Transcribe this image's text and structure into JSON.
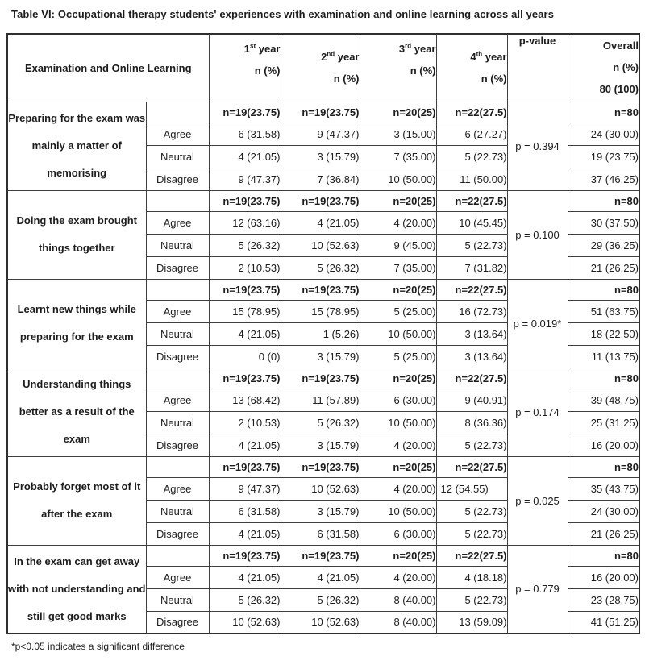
{
  "title": "Table VI: Occupational therapy students' experiences with examination and online learning across all years",
  "footnote": "*p<0.05 indicates a significant difference",
  "table": {
    "header": {
      "main": "Examination and Online Learning",
      "years": [
        {
          "num": "1",
          "suffix": "st",
          "word": "year",
          "sub": "n (%)"
        },
        {
          "num": "2",
          "suffix": "nd",
          "word": "year",
          "sub": "n (%)"
        },
        {
          "num": "3",
          "suffix": "rd",
          "word": "year",
          "sub": "n (%)"
        },
        {
          "num": "4",
          "suffix": "th",
          "word": "year",
          "sub": "n (%)"
        }
      ],
      "p_label": "p-value",
      "overall_lines": [
        "Overall",
        "n (%)",
        "80 (100)"
      ]
    },
    "blocks": [
      {
        "statement": "Preparing for the exam was mainly a matter of memorising",
        "p_value": "p = 0.394",
        "n_row": [
          "n=19(23.75)",
          "n=19(23.75)",
          "n=20(25)",
          "n=22(27.5)",
          "n=80"
        ],
        "rows": [
          {
            "label": "Agree",
            "values": [
              "6 (31.58)",
              "9 (47.37)",
              "3 (15.00)",
              "6 (27.27)",
              "24 (30.00)"
            ]
          },
          {
            "label": "Neutral",
            "values": [
              "4 (21.05)",
              "3 (15.79)",
              "7 (35.00)",
              "5 (22.73)",
              "19 (23.75)"
            ]
          },
          {
            "label": "Disagree",
            "values": [
              "9 (47.37)",
              "7 (36.84)",
              "10 (50.00)",
              "11 (50.00)",
              "37 (46.25)"
            ]
          }
        ]
      },
      {
        "statement": "Doing the exam brought things together",
        "p_value": "p = 0.100",
        "n_row": [
          "n=19(23.75)",
          "n=19(23.75)",
          "n=20(25)",
          "n=22(27.5)",
          "n=80"
        ],
        "rows": [
          {
            "label": "Agree",
            "values": [
              "12 (63.16)",
              "4 (21.05)",
              "4 (20.00)",
              "10 (45.45)",
              "30 (37.50)"
            ]
          },
          {
            "label": "Neutral",
            "values": [
              "5 (26.32)",
              "10 (52.63)",
              "9 (45.00)",
              "5 (22.73)",
              "29 (36.25)"
            ]
          },
          {
            "label": "Disagree",
            "values": [
              "2 (10.53)",
              "5 (26.32)",
              "7 (35.00)",
              "7 (31.82)",
              "21 (26.25)"
            ]
          }
        ]
      },
      {
        "statement": "Learnt new things while preparing for the exam",
        "p_value": "p = 0.019*",
        "n_row": [
          "n=19(23.75)",
          "n=19(23.75)",
          "n=20(25)",
          "n=22(27.5)",
          "n=80"
        ],
        "rows": [
          {
            "label": "Agree",
            "values": [
              "15 (78.95)",
              "15 (78.95)",
              "5 (25.00)",
              "16 (72.73)",
              "51 (63.75)"
            ]
          },
          {
            "label": "Neutral",
            "values": [
              "4 (21.05)",
              "1 (5.26)",
              "10 (50.00)",
              "3 (13.64)",
              "18 (22.50)"
            ]
          },
          {
            "label": "Disagree",
            "values": [
              "0 (0)",
              "3 (15.79)",
              "5 (25.00)",
              "3 (13.64)",
              "11 (13.75)"
            ]
          }
        ]
      },
      {
        "statement": "Understanding things better as a result of the exam",
        "p_value": "p = 0.174",
        "n_row": [
          "n=19(23.75)",
          "n=19(23.75)",
          "n=20(25)",
          "n=22(27.5)",
          "n=80"
        ],
        "rows": [
          {
            "label": "Agree",
            "values": [
              "13 (68.42)",
              "11 (57.89)",
              "6 (30.00)",
              "9 (40.91)",
              "39 (48.75)"
            ]
          },
          {
            "label": "Neutral",
            "values": [
              "2 (10.53)",
              "5 (26.32)",
              "10 (50.00)",
              "8 (36.36)",
              "25 (31.25)"
            ]
          },
          {
            "label": "Disagree",
            "values": [
              "4 (21.05)",
              "3 (15.79)",
              "4 (20.00)",
              "5 (22.73)",
              "16 (20.00)"
            ]
          }
        ]
      },
      {
        "statement": "Probably forget most of it after the exam",
        "p_value": "p = 0.025",
        "n_row": [
          "n=19(23.75)",
          "n=19(23.75)",
          "n=20(25)",
          "n=22(27.5)",
          "n=80"
        ],
        "rows": [
          {
            "label": "Agree",
            "values": [
              "9 (47.37)",
              "10 (52.63)",
              "4 (20.00)",
              "12 (54.55)",
              "35 (43.75)"
            ],
            "left_cols": [
              3
            ]
          },
          {
            "label": "Neutral",
            "values": [
              "6 (31.58)",
              "3 (15.79)",
              "10 (50.00)",
              "5 (22.73)",
              "24 (30.00)"
            ]
          },
          {
            "label": "Disagree",
            "values": [
              "4 (21.05)",
              "6 (31.58)",
              "6 (30.00)",
              "5 (22.73)",
              "21 (26.25)"
            ]
          }
        ]
      },
      {
        "statement": "In the exam can get away with not understanding and still get good marks",
        "p_value": "p = 0.779",
        "n_row": [
          "n=19(23.75)",
          "n=19(23.75)",
          "n=20(25)",
          "n=22(27.5)",
          "n=80"
        ],
        "rows": [
          {
            "label": "Agree",
            "values": [
              "4 (21.05)",
              "4 (21.05)",
              "4 (20.00)",
              "4 (18.18)",
              "16 (20.00)"
            ]
          },
          {
            "label": "Neutral",
            "values": [
              "5 (26.32)",
              "5 (26.32)",
              "8 (40.00)",
              "5 (22.73)",
              "23 (28.75)"
            ]
          },
          {
            "label": "Disagree",
            "values": [
              "10 (52.63)",
              "10 (52.63)",
              "8 (40.00)",
              "13 (59.09)",
              "41 (51.25)"
            ]
          }
        ]
      }
    ]
  }
}
